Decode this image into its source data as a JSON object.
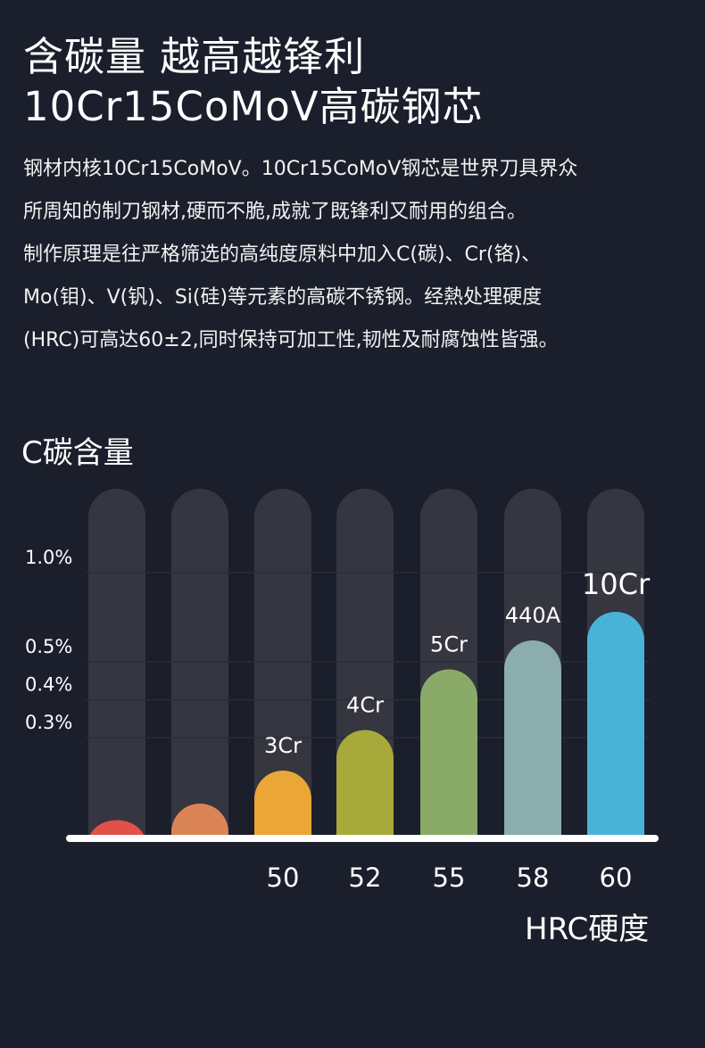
{
  "headline": {
    "line1": "含碳量 越高越锋利",
    "line2": "10Cr15CoMoV高碳钢芯"
  },
  "intro": [
    "钢材内核10Cr15CoMoV。10Cr15CoMoV钢芯是世界刀具界众",
    "所周知的制刀钢材,硬而不脆,成就了既锋利又耐用的组合。",
    "制作原理是往严格筛选的高纯度原料中加入C(碳)、Cr(铬)、",
    "Mo(钼)、V(钒)、Si(硅)等元素的高碳不锈钢。经熱处理硬度",
    "(HRC)可高达60±2,同时保持可加工性,韧性及耐腐蚀性皆强。"
  ],
  "chart_data": {
    "type": "bar",
    "title": "C碳含量",
    "xlabel": "HRC硬度",
    "ylabel": "",
    "yticks": [
      "1.0%",
      "0.5%",
      "0.4%",
      "0.3%"
    ],
    "ytick_values": [
      1.0,
      0.5,
      0.4,
      0.3
    ],
    "ylim": [
      0,
      1.1
    ],
    "grid": true,
    "categories": [
      "",
      "",
      "50",
      "52",
      "55",
      "58",
      "60"
    ],
    "bar_labels": [
      "",
      "",
      "3Cr",
      "4Cr",
      "5Cr",
      "440A",
      "10Cr"
    ],
    "values": [
      0.05,
      0.1,
      0.2,
      0.32,
      0.48,
      0.62,
      0.78
    ],
    "colors": [
      "#e25148",
      "#db8456",
      "#eba638",
      "#a7a93a",
      "#8aab67",
      "#8badac",
      "#48b3d7"
    ],
    "track_color": "#353640",
    "grid_color": "#2a2c37",
    "baseline_color": "#ffffff"
  }
}
